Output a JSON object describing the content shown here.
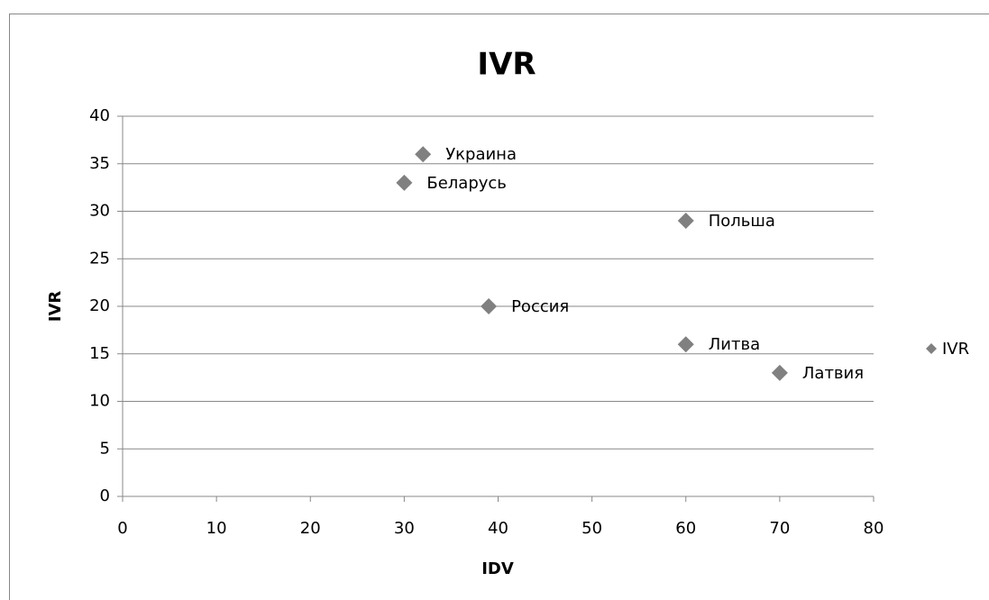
{
  "chart_data": {
    "type": "scatter",
    "title": "IVR",
    "x_label": "IDV",
    "y_label": "IVR",
    "series": [
      {
        "name": "IVR",
        "color": "#808080",
        "x": [
          32,
          30,
          60,
          39,
          60,
          70
        ],
        "values": [
          36,
          33,
          29,
          20,
          16,
          13
        ],
        "labels": [
          "Украина",
          "Беларусь",
          "Польша",
          "Россия",
          "Литва",
          "Латвия"
        ]
      }
    ],
    "xlim": [
      0,
      80
    ],
    "xticks": [
      0,
      10,
      20,
      30,
      40,
      50,
      60,
      70,
      80
    ],
    "ylim": [
      0,
      40
    ],
    "yticks": [
      0,
      5,
      10,
      15,
      20,
      25,
      30,
      35,
      40
    ],
    "grid": true,
    "legend": "right"
  }
}
